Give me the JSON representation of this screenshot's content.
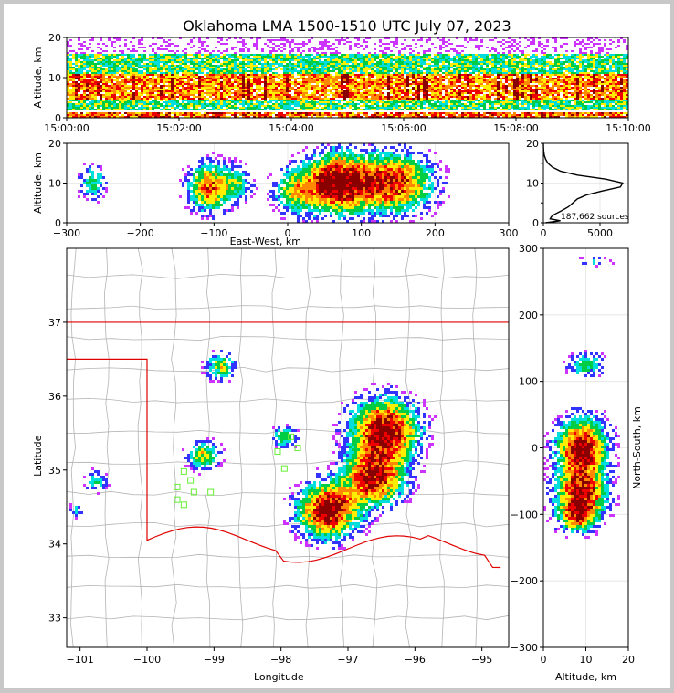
{
  "figure": {
    "title": "Oklahoma LMA 1500-1510 UTC July 07, 2023",
    "source_count_label": "187,662 sources"
  },
  "chart_data": [
    {
      "id": "altitude-time",
      "type": "heatmap",
      "ylabel": "Altitude, km",
      "xlabel": "",
      "xlim": [
        "15:00:00",
        "15:10:00"
      ],
      "ylim": [
        0,
        20
      ],
      "x_ticks": [
        "15:00:00",
        "15:02:00",
        "15:04:00",
        "15:06:00",
        "15:08:00",
        "15:10:00"
      ],
      "y_ticks": [
        0,
        10,
        20
      ],
      "density_band_km": [
        2,
        16
      ],
      "peak_band_km": [
        5,
        11
      ]
    },
    {
      "id": "east-west-altitude",
      "type": "heatmap",
      "xlabel": "East-West, km",
      "ylabel": "Altitude, km",
      "xlim": [
        -300,
        300
      ],
      "ylim": [
        0,
        20
      ],
      "x_ticks": [
        -300,
        -200,
        -100,
        0,
        100,
        200,
        300
      ],
      "y_ticks": [
        0,
        10,
        20
      ],
      "clusters": [
        {
          "x": -265,
          "z": 10,
          "sx": 12,
          "sz": 3,
          "w": 0.45
        },
        {
          "x": -105,
          "z": 9,
          "sx": 20,
          "sz": 4,
          "w": 0.8
        },
        {
          "x": -65,
          "z": 10,
          "sx": 12,
          "sz": 3,
          "w": 0.35
        },
        {
          "x": 10,
          "z": 8,
          "sx": 20,
          "sz": 4,
          "w": 0.5
        },
        {
          "x": 65,
          "z": 10,
          "sx": 28,
          "sz": 5,
          "w": 1.0
        },
        {
          "x": 140,
          "z": 10,
          "sx": 38,
          "sz": 5,
          "w": 0.9
        }
      ]
    },
    {
      "id": "altitude-histogram",
      "type": "line",
      "xlabel": "",
      "ylabel": "",
      "xlim": [
        0,
        7500
      ],
      "ylim": [
        0,
        20
      ],
      "x_ticks": [
        0,
        5000
      ],
      "y_ticks": [
        0,
        5,
        10,
        15,
        20
      ],
      "altitude_km": [
        0,
        0.5,
        1,
        1.5,
        2,
        3,
        4,
        5,
        6,
        7,
        8,
        9,
        10,
        11,
        12,
        13,
        14,
        15,
        16,
        17,
        18,
        19,
        20
      ],
      "counts": [
        200,
        1500,
        600,
        700,
        900,
        1600,
        2200,
        2600,
        3000,
        3800,
        5200,
        6800,
        7000,
        5500,
        3000,
        1500,
        800,
        400,
        200,
        80,
        30,
        10,
        0
      ]
    },
    {
      "id": "plan-view",
      "type": "heatmap",
      "xlabel": "Longitude",
      "ylabel": "Latitude",
      "xlim": [
        -101.2,
        -94.6
      ],
      "ylim": [
        32.6,
        38
      ],
      "x_ticks": [
        -101,
        -100,
        -99,
        -98,
        -97,
        -96,
        -95
      ],
      "y_ticks": [
        33,
        34,
        35,
        36,
        37
      ],
      "clusters": [
        {
          "lon": -98.9,
          "lat": 36.4,
          "s": 0.12,
          "w": 0.55
        },
        {
          "lon": -99.15,
          "lat": 35.2,
          "s": 0.13,
          "w": 0.6
        },
        {
          "lon": -97.95,
          "lat": 35.45,
          "s": 0.1,
          "w": 0.5
        },
        {
          "lon": -96.45,
          "lat": 35.55,
          "s": 0.28,
          "w": 1.0
        },
        {
          "lon": -96.6,
          "lat": 34.9,
          "s": 0.25,
          "w": 0.9
        },
        {
          "lon": -97.3,
          "lat": 34.45,
          "s": 0.25,
          "w": 1.0
        },
        {
          "lon": -100.75,
          "lat": 34.85,
          "s": 0.1,
          "w": 0.35
        },
        {
          "lon": -101.05,
          "lat": 34.45,
          "s": 0.07,
          "w": 0.3
        }
      ],
      "stations": [
        [
          -99.45,
          34.98
        ],
        [
          -99.35,
          34.86
        ],
        [
          -99.55,
          34.77
        ],
        [
          -99.3,
          34.7
        ],
        [
          -99.55,
          34.6
        ],
        [
          -99.45,
          34.53
        ],
        [
          -99.05,
          34.7
        ],
        [
          -97.85,
          35.45
        ],
        [
          -97.95,
          35.02
        ],
        [
          -98.05,
          35.25
        ],
        [
          -97.75,
          35.3
        ]
      ]
    },
    {
      "id": "north-south-altitude",
      "type": "heatmap",
      "xlabel": "Altitude, km",
      "ylabel": "North-South, km",
      "xlim": [
        0,
        20
      ],
      "ylim": [
        -300,
        300
      ],
      "x_ticks": [
        0,
        10,
        20
      ],
      "y_ticks": [
        -300,
        -200,
        -100,
        0,
        100,
        200,
        300
      ],
      "clusters": [
        {
          "z": 9,
          "y": 0,
          "sz": 4,
          "sy": 30,
          "w": 1.0
        },
        {
          "z": 9,
          "y": -70,
          "sz": 4,
          "sy": 25,
          "w": 0.9
        },
        {
          "z": 8,
          "y": -105,
          "sz": 3,
          "sy": 15,
          "w": 0.6
        },
        {
          "z": 10,
          "y": 125,
          "sz": 3,
          "sy": 12,
          "w": 0.45
        },
        {
          "z": 12,
          "y": 280,
          "sz": 3,
          "sy": 6,
          "w": 0.25
        }
      ]
    }
  ]
}
